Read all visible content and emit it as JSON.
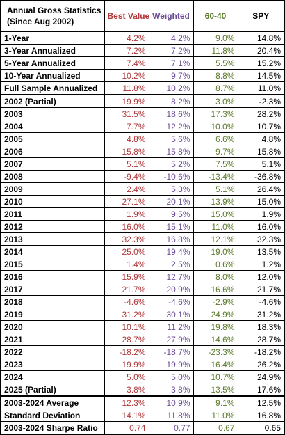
{
  "header": {
    "title_line1": "Annual Gross Statistics",
    "title_line2": "(Since Aug 2002)",
    "columns": [
      "Best Value",
      "Weighted",
      "60-40",
      "SPY"
    ]
  },
  "colors": {
    "best_value": "#b0383a",
    "weighted": "#6b4d96",
    "sixty_forty": "#5b7a2a",
    "spy": "#000000"
  },
  "rows": [
    {
      "label": "1-Year",
      "values": [
        "4.2%",
        "4.2%",
        "9.0%",
        "14.8%"
      ]
    },
    {
      "label": "3-Year Annualized",
      "values": [
        "7.2%",
        "7.2%",
        "11.8%",
        "20.4%"
      ]
    },
    {
      "label": "5-Year Annualized",
      "values": [
        "7.4%",
        "7.1%",
        "5.5%",
        "15.2%"
      ]
    },
    {
      "label": "10-Year Annualized",
      "values": [
        "10.2%",
        "9.7%",
        "8.8%",
        "14.5%"
      ]
    },
    {
      "label": "Full Sample Annualized",
      "values": [
        "11.8%",
        "10.2%",
        "8.7%",
        "11.0%"
      ]
    },
    {
      "label": "2002 (Partial)",
      "values": [
        "19.9%",
        "8.2%",
        "3.0%",
        "-2.3%"
      ]
    },
    {
      "label": "2003",
      "values": [
        "31.5%",
        "18.6%",
        "17.3%",
        "28.2%"
      ]
    },
    {
      "label": "2004",
      "values": [
        "7.7%",
        "12.2%",
        "10.0%",
        "10.7%"
      ]
    },
    {
      "label": "2005",
      "values": [
        "4.8%",
        "5.6%",
        "6.6%",
        "4.8%"
      ]
    },
    {
      "label": "2006",
      "values": [
        "15.8%",
        "15.8%",
        "9.7%",
        "15.8%"
      ]
    },
    {
      "label": "2007",
      "values": [
        "5.1%",
        "5.2%",
        "7.5%",
        "5.1%"
      ]
    },
    {
      "label": "2008",
      "values": [
        "-9.4%",
        "-10.6%",
        "-13.4%",
        "-36.8%"
      ]
    },
    {
      "label": "2009",
      "values": [
        "2.4%",
        "5.3%",
        "5.1%",
        "26.4%"
      ]
    },
    {
      "label": "2010",
      "values": [
        "27.1%",
        "20.1%",
        "13.9%",
        "15.0%"
      ]
    },
    {
      "label": "2011",
      "values": [
        "1.9%",
        "9.5%",
        "15.0%",
        "1.9%"
      ]
    },
    {
      "label": "2012",
      "values": [
        "16.0%",
        "15.1%",
        "11.0%",
        "16.0%"
      ]
    },
    {
      "label": "2013",
      "values": [
        "32.3%",
        "16.8%",
        "12.1%",
        "32.3%"
      ]
    },
    {
      "label": "2014",
      "values": [
        "25.0%",
        "19.4%",
        "19.0%",
        "13.5%"
      ]
    },
    {
      "label": "2015",
      "values": [
        "1.4%",
        "2.5%",
        "0.6%",
        "1.2%"
      ]
    },
    {
      "label": "2016",
      "values": [
        "15.9%",
        "12.7%",
        "8.0%",
        "12.0%"
      ]
    },
    {
      "label": "2017",
      "values": [
        "21.7%",
        "20.9%",
        "16.6%",
        "21.7%"
      ]
    },
    {
      "label": "2018",
      "values": [
        "-4.6%",
        "-4.6%",
        "-2.9%",
        "-4.6%"
      ]
    },
    {
      "label": "2019",
      "values": [
        "31.2%",
        "30.1%",
        "24.9%",
        "31.2%"
      ]
    },
    {
      "label": "2020",
      "values": [
        "10.1%",
        "11.2%",
        "19.8%",
        "18.3%"
      ]
    },
    {
      "label": "2021",
      "values": [
        "28.7%",
        "27.9%",
        "14.6%",
        "28.7%"
      ]
    },
    {
      "label": "2022",
      "values": [
        "-18.2%",
        "-18.7%",
        "-23.3%",
        "-18.2%"
      ]
    },
    {
      "label": "2023",
      "values": [
        "19.9%",
        "19.9%",
        "16.4%",
        "26.2%"
      ]
    },
    {
      "label": "2024",
      "values": [
        "5.0%",
        "5.0%",
        "10.7%",
        "24.9%"
      ]
    },
    {
      "label": "2025 (Partial)",
      "values": [
        "3.8%",
        "3.8%",
        "13.5%",
        "17.6%"
      ]
    },
    {
      "label": "2003-2024 Average",
      "values": [
        "12.3%",
        "10.9%",
        "9.1%",
        "12.5%"
      ]
    },
    {
      "label": "Standard Deviation",
      "values": [
        "14.1%",
        "11.8%",
        "11.0%",
        "16.8%"
      ]
    },
    {
      "label": "2003-2024 Sharpe Ratio",
      "values": [
        "0.74",
        "0.77",
        "0.67",
        "0.65"
      ]
    }
  ]
}
